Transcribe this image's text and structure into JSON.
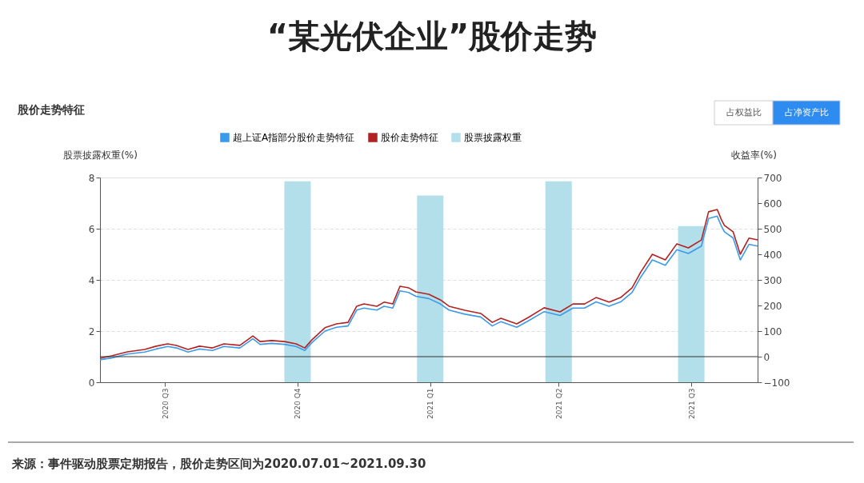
{
  "chart_data": {
    "type": "line",
    "title": "“某光伏企业”股价走势",
    "subtitle": "股价走势特征",
    "ylabel": "股票披露权重(%)",
    "y2label": "收益率(%)",
    "xlim": [
      "2020-07-01",
      "2021-09-30"
    ],
    "xticks": [
      {
        "value": "2020-08-15",
        "label": "2020 Q3"
      },
      {
        "value": "2020-11-15",
        "label": "2020 Q4"
      },
      {
        "value": "2021-02-15",
        "label": "2021 Q1"
      },
      {
        "value": "2021-05-15",
        "label": "2021 Q2"
      },
      {
        "value": "2021-08-15",
        "label": "2021 Q3"
      }
    ],
    "ylim": [
      0,
      8
    ],
    "yticks": [
      0,
      2,
      4,
      6,
      8
    ],
    "y2lim": [
      -100,
      700
    ],
    "y2ticks": [
      -100,
      0,
      100,
      200,
      300,
      400,
      500,
      600,
      700
    ],
    "grid": "y",
    "legend": "top",
    "line_style": "solid",
    "series": [
      {
        "name": "超上证A指部分股价走势特征",
        "axis": "y2",
        "color": "#3d9ae8",
        "x": [
          "2020-07-01",
          "2020-07-09",
          "2020-07-20",
          "2020-08-01",
          "2020-08-09",
          "2020-08-17",
          "2020-08-23",
          "2020-08-31",
          "2020-09-08",
          "2020-09-17",
          "2020-09-25",
          "2020-10-06",
          "2020-10-15",
          "2020-10-20",
          "2020-10-28",
          "2020-11-06",
          "2020-11-14",
          "2020-11-20",
          "2020-11-25",
          "2020-12-04",
          "2020-12-12",
          "2020-12-20",
          "2020-12-26",
          "2020-12-31",
          "2021-01-09",
          "2021-01-14",
          "2021-01-20",
          "2021-01-25",
          "2021-01-31",
          "2021-02-05",
          "2021-02-14",
          "2021-02-22",
          "2021-02-28",
          "2021-03-11",
          "2021-03-22",
          "2021-03-30",
          "2021-04-05",
          "2021-04-16",
          "2021-04-24",
          "2021-05-05",
          "2021-05-16",
          "2021-05-25",
          "2021-06-02",
          "2021-06-10",
          "2021-06-19",
          "2021-06-27",
          "2021-07-05",
          "2021-07-11",
          "2021-07-19",
          "2021-07-28",
          "2021-08-05",
          "2021-08-13",
          "2021-08-22",
          "2021-08-27",
          "2021-09-02",
          "2021-09-05",
          "2021-09-07",
          "2021-09-13",
          "2021-09-18",
          "2021-09-24",
          "2021-09-30"
        ],
        "values": [
          -12,
          -5,
          10,
          18,
          30,
          40,
          34,
          18,
          30,
          24,
          40,
          34,
          70,
          48,
          52,
          48,
          40,
          24,
          55,
          100,
          115,
          120,
          182,
          190,
          182,
          197,
          190,
          257,
          251,
          236,
          227,
          206,
          182,
          166,
          155,
          120,
          137,
          115,
          140,
          176,
          161,
          190,
          190,
          214,
          197,
          214,
          251,
          311,
          378,
          357,
          418,
          403,
          432,
          540,
          549,
          509,
          488,
          464,
          378,
          439,
          432
        ]
      },
      {
        "name": "股价走势特征",
        "axis": "y2",
        "color": "#b22222",
        "x": [
          "2020-07-01",
          "2020-07-09",
          "2020-07-20",
          "2020-08-01",
          "2020-08-09",
          "2020-08-17",
          "2020-08-23",
          "2020-08-31",
          "2020-09-08",
          "2020-09-17",
          "2020-09-25",
          "2020-10-06",
          "2020-10-15",
          "2020-10-20",
          "2020-10-28",
          "2020-11-06",
          "2020-11-14",
          "2020-11-20",
          "2020-11-25",
          "2020-12-04",
          "2020-12-12",
          "2020-12-20",
          "2020-12-26",
          "2020-12-31",
          "2021-01-09",
          "2021-01-14",
          "2021-01-20",
          "2021-01-25",
          "2021-01-31",
          "2021-02-05",
          "2021-02-14",
          "2021-02-22",
          "2021-02-28",
          "2021-03-11",
          "2021-03-22",
          "2021-03-30",
          "2021-04-05",
          "2021-04-16",
          "2021-04-24",
          "2021-05-05",
          "2021-05-16",
          "2021-05-25",
          "2021-06-02",
          "2021-06-10",
          "2021-06-19",
          "2021-06-27",
          "2021-07-05",
          "2021-07-11",
          "2021-07-19",
          "2021-07-28",
          "2021-08-05",
          "2021-08-13",
          "2021-08-22",
          "2021-08-27",
          "2021-09-02",
          "2021-09-05",
          "2021-09-07",
          "2021-09-13",
          "2021-09-18",
          "2021-09-24",
          "2021-09-30"
        ],
        "values": [
          -6,
          3,
          19,
          28,
          41,
          50,
          44,
          28,
          41,
          34,
          50,
          44,
          81,
          59,
          63,
          59,
          50,
          34,
          66,
          113,
          128,
          134,
          197,
          206,
          197,
          213,
          206,
          275,
          269,
          253,
          244,
          222,
          197,
          181,
          169,
          134,
          150,
          128,
          153,
          191,
          175,
          206,
          206,
          231,
          213,
          231,
          269,
          331,
          400,
          378,
          441,
          425,
          456,
          566,
          575,
          534,
          513,
          488,
          400,
          463,
          456
        ]
      },
      {
        "name": "股票披露权重",
        "type": "bar",
        "color": "#b3dfea",
        "x": [
          "2020-11-15",
          "2021-02-15",
          "2021-05-15",
          "2021-08-15"
        ],
        "values": [
          7.85,
          7.3,
          7.85,
          6.1
        ]
      }
    ],
    "ref_lines": [
      {
        "axis": "y2",
        "value": 0,
        "color": "#333333"
      }
    ],
    "annotations": [
      "占权益比",
      "占净资产比",
      "来源：事件驱动股票定期报告，股价走势区间为2020.07.01~2021.09.30"
    ]
  }
}
